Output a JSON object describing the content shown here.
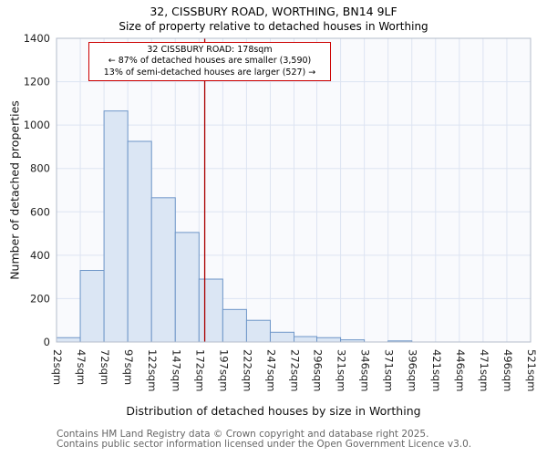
{
  "title_line1": "32, CISSBURY ROAD, WORTHING, BN14 9LF",
  "title_line2": "Size of property relative to detached houses in Worthing",
  "annotation": {
    "line1": "32 CISSBURY ROAD: 178sqm",
    "line2": "← 87% of detached houses are smaller (3,590)",
    "line3": "13% of semi-detached houses are larger (527) →"
  },
  "footer_line1": "Contains HM Land Registry data © Crown copyright and database right 2025.",
  "footer_line2": "Contains public sector information licensed under the Open Government Licence v3.0.",
  "chart_data": {
    "type": "bar",
    "title": "32, CISSBURY ROAD, WORTHING, BN14 9LF — Size of property relative to detached houses in Worthing",
    "xlabel": "Distribution of detached houses by size in Worthing",
    "ylabel": "Number of detached properties",
    "bin_edges": [
      22,
      47,
      72,
      97,
      122,
      147,
      172,
      197,
      222,
      247,
      272,
      296,
      321,
      346,
      371,
      396,
      421,
      446,
      471,
      496,
      521
    ],
    "x_tick_labels": [
      "22sqm",
      "47sqm",
      "72sqm",
      "97sqm",
      "122sqm",
      "147sqm",
      "172sqm",
      "197sqm",
      "222sqm",
      "247sqm",
      "272sqm",
      "296sqm",
      "321sqm",
      "346sqm",
      "371sqm",
      "396sqm",
      "421sqm",
      "446sqm",
      "471sqm",
      "496sqm",
      "521sqm"
    ],
    "values": [
      20,
      330,
      1065,
      925,
      665,
      505,
      290,
      150,
      100,
      45,
      25,
      20,
      10,
      0,
      5,
      0,
      0,
      0,
      0,
      0
    ],
    "ylim": [
      0,
      1400
    ],
    "y_ticks": [
      0,
      200,
      400,
      600,
      800,
      1000,
      1200,
      1400
    ],
    "marker_value": 178,
    "marker_label": "178sqm",
    "marker_color": "#aa0000",
    "bar_fill": "#dbe6f4",
    "bar_stroke": "#6e96c8",
    "grid_color": "#dde4f2",
    "plot_bg": "#f9fafd",
    "legend": "none",
    "grid": true
  }
}
